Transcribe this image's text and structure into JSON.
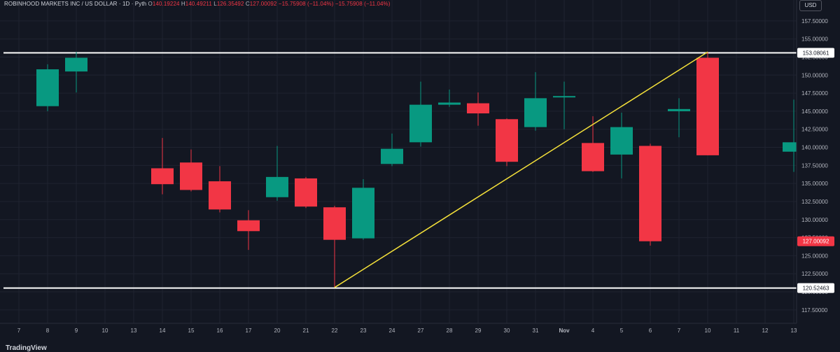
{
  "header": {
    "title": "ROBINHOOD MARKETS INC / US DOLLAR · 1D · Pyth",
    "o_label": "O",
    "o_value": "140.19224",
    "h_label": "H",
    "h_value": "140.49211",
    "l_label": "L",
    "l_value": "126.35492",
    "c_label": "C",
    "c_value": "127.00092",
    "change": "−15.75908 (−11.04%)",
    "change2": "−15.75908 (−11.04%)"
  },
  "currency_button": "USD",
  "brand": "TradingView",
  "colors": {
    "background": "#131722",
    "up": "#089981",
    "down": "#f23645",
    "trendline": "#f5e13a",
    "levels": "#ffffff",
    "grid": "#1f2330"
  },
  "chart_data": {
    "type": "candlestick",
    "x_categories": [
      "7",
      "8",
      "9",
      "10",
      "13",
      "14",
      "15",
      "16",
      "17",
      "20",
      "21",
      "22",
      "23",
      "24",
      "27",
      "28",
      "29",
      "30",
      "31",
      "Nov",
      "4",
      "5",
      "6",
      "7",
      "10",
      "11",
      "12",
      "13"
    ],
    "ylim": [
      116,
      159
    ],
    "y_ticks": [
      "117.50000",
      "120.00000",
      "122.50000",
      "125.00000",
      "127.50000",
      "130.00000",
      "132.50000",
      "135.00000",
      "137.50000",
      "140.00000",
      "142.50000",
      "145.00000",
      "147.50000",
      "150.00000",
      "152.50000",
      "155.00000",
      "157.50000"
    ],
    "candles": [
      {
        "x": "7",
        "o": 145.0,
        "h": 146.8,
        "l": 141.4,
        "c": 145.3
      },
      {
        "x": "8",
        "o": 145.7,
        "h": 151.5,
        "l": 145.0,
        "c": 150.8
      },
      {
        "x": "9",
        "o": 150.5,
        "h": 153.2,
        "l": 147.6,
        "c": 152.4
      },
      {
        "x": "10",
        "o": 152.4,
        "h": 153.2,
        "l": 138.9,
        "c": 138.9
      },
      {
        "x": "13",
        "o": 139.4,
        "h": 146.6,
        "l": 136.6,
        "c": 140.7
      },
      {
        "x": "14",
        "o": 137.1,
        "h": 141.3,
        "l": 133.5,
        "c": 134.9
      },
      {
        "x": "15",
        "o": 137.9,
        "h": 139.7,
        "l": 133.9,
        "c": 134.1
      },
      {
        "x": "16",
        "o": 135.3,
        "h": 137.4,
        "l": 131.0,
        "c": 131.4
      },
      {
        "x": "17",
        "o": 129.9,
        "h": 131.3,
        "l": 125.8,
        "c": 128.4
      },
      {
        "x": "20",
        "o": 133.1,
        "h": 140.2,
        "l": 132.6,
        "c": 135.9
      },
      {
        "x": "21",
        "o": 135.7,
        "h": 135.9,
        "l": 131.6,
        "c": 131.8
      },
      {
        "x": "22",
        "o": 131.7,
        "h": 131.9,
        "l": 120.6,
        "c": 127.2
      },
      {
        "x": "23",
        "o": 127.4,
        "h": 135.6,
        "l": 127.2,
        "c": 134.4
      },
      {
        "x": "24",
        "o": 137.7,
        "h": 141.9,
        "l": 137.4,
        "c": 139.8
      },
      {
        "x": "27",
        "o": 140.7,
        "h": 149.1,
        "l": 140.1,
        "c": 145.9
      },
      {
        "x": "28",
        "o": 145.9,
        "h": 148.0,
        "l": 145.6,
        "c": 146.2
      },
      {
        "x": "29",
        "o": 146.1,
        "h": 147.6,
        "l": 143.0,
        "c": 144.7
      },
      {
        "x": "30",
        "o": 143.9,
        "h": 144.0,
        "l": 137.4,
        "c": 138.0
      },
      {
        "x": "31",
        "o": 142.8,
        "h": 150.4,
        "l": 142.3,
        "c": 146.8
      },
      {
        "x": "Nov",
        "o": 147.0,
        "h": 149.1,
        "l": 142.5,
        "c": 147.1
      },
      {
        "x": "4",
        "o": 140.6,
        "h": 144.3,
        "l": 136.6,
        "c": 136.7
      },
      {
        "x": "5",
        "o": 139.0,
        "h": 144.8,
        "l": 135.7,
        "c": 142.8
      },
      {
        "x": "6",
        "o": 140.2,
        "h": 140.5,
        "l": 126.4,
        "c": 127.0
      }
    ],
    "horizontal_levels": [
      {
        "label": "153.08061",
        "value": 153.08061
      },
      {
        "label": "120.52463",
        "value": 120.52463
      }
    ],
    "trendline": {
      "x1": "10",
      "y1": 153.2,
      "x2": "22",
      "y2": 120.6
    },
    "price_tag": {
      "label": "127.00092",
      "value": 127.00092
    }
  }
}
